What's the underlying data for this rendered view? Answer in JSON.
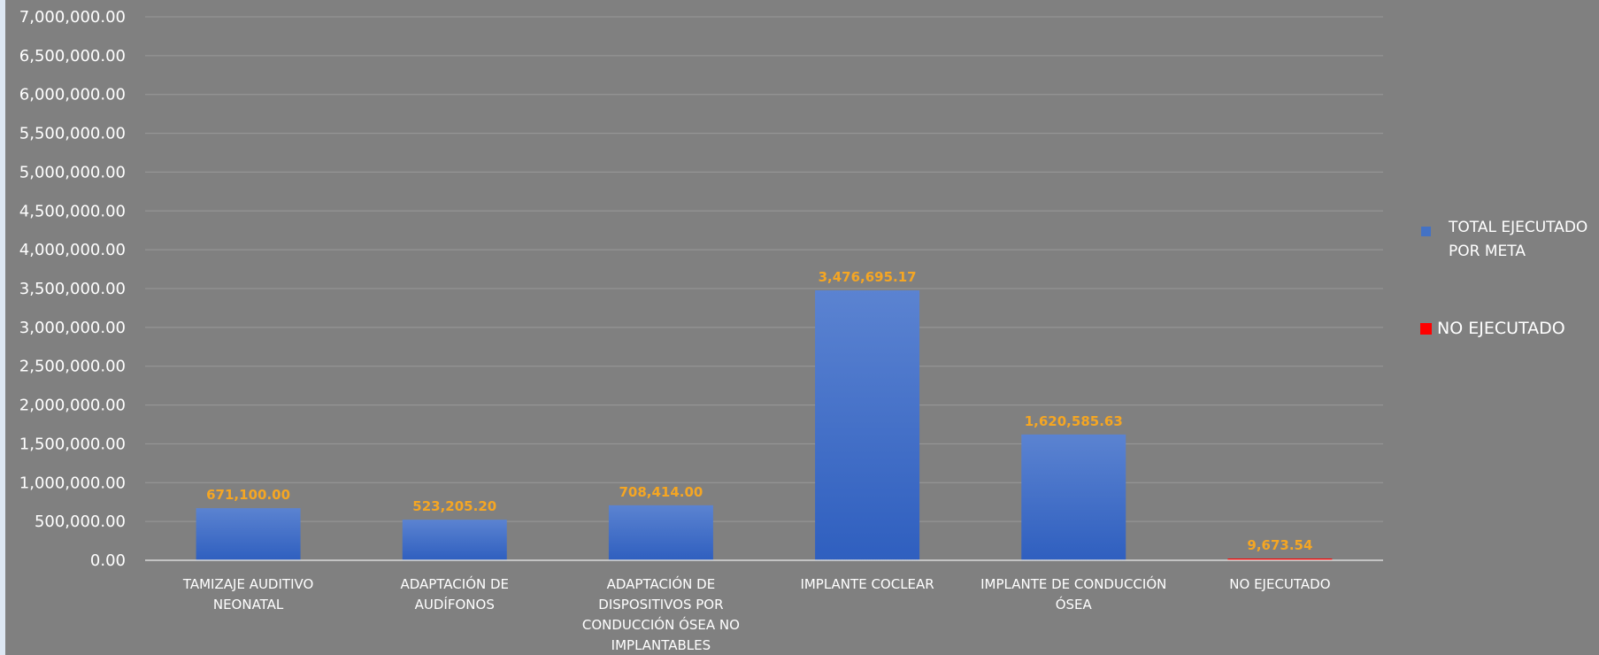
{
  "chart_data": {
    "type": "bar",
    "categories": [
      [
        "TAMIZAJE AUDITIVO",
        "NEONATAL"
      ],
      [
        "ADAPTACIÓN DE",
        "AUDÍFONOS"
      ],
      [
        "ADAPTACIÓN DE",
        "DISPOSITIVOS POR",
        "CONDUCCIÓN ÓSEA NO",
        "IMPLANTABLES"
      ],
      [
        "IMPLANTE COCLEAR"
      ],
      [
        "IMPLANTE DE CONDUCCIÓN",
        "ÓSEA"
      ],
      [
        "NO EJECUTADO"
      ]
    ],
    "series": [
      {
        "name": "TOTAL EJECUTADO POR META",
        "legend_lines": [
          "TOTAL EJECUTADO",
          "POR META"
        ],
        "color": "#4472c4",
        "values": [
          671100.0,
          523205.2,
          708414.0,
          3476695.17,
          1620585.63,
          null
        ],
        "labels": [
          "671,100.00",
          "523,205.20",
          "708,414.00",
          "3,476,695.17",
          "1,620,585.63",
          null
        ]
      },
      {
        "name": "NO EJECUTADO",
        "legend_lines": [
          "NO EJECUTADO"
        ],
        "color": "#ff0000",
        "values": [
          null,
          null,
          null,
          null,
          null,
          9673.54
        ],
        "labels": [
          null,
          null,
          null,
          null,
          null,
          "9,673.54"
        ]
      }
    ],
    "ylim": [
      0,
      7000000
    ],
    "y_ticks": [
      0,
      500000,
      1000000,
      1500000,
      2000000,
      2500000,
      3000000,
      3500000,
      4000000,
      4500000,
      5000000,
      5500000,
      6000000,
      6500000,
      7000000
    ],
    "y_tick_labels": [
      "0.00",
      "500,000.00",
      "1,000,000.00",
      "1,500,000.00",
      "2,000,000.00",
      "2,500,000.00",
      "3,000,000.00",
      "3,500,000.00",
      "4,000,000.00",
      "4,500,000.00",
      "5,000,000.00",
      "5,500,000.00",
      "6,000,000.00",
      "6,500,000.00",
      "7,000,000.00"
    ],
    "title": "",
    "xlabel": "",
    "ylabel": "",
    "grid": true,
    "legend_position": "right",
    "colors": {
      "background": "#808080",
      "gridline": "#999999",
      "data_label": "#f5a623",
      "text": "#ffffff"
    }
  }
}
